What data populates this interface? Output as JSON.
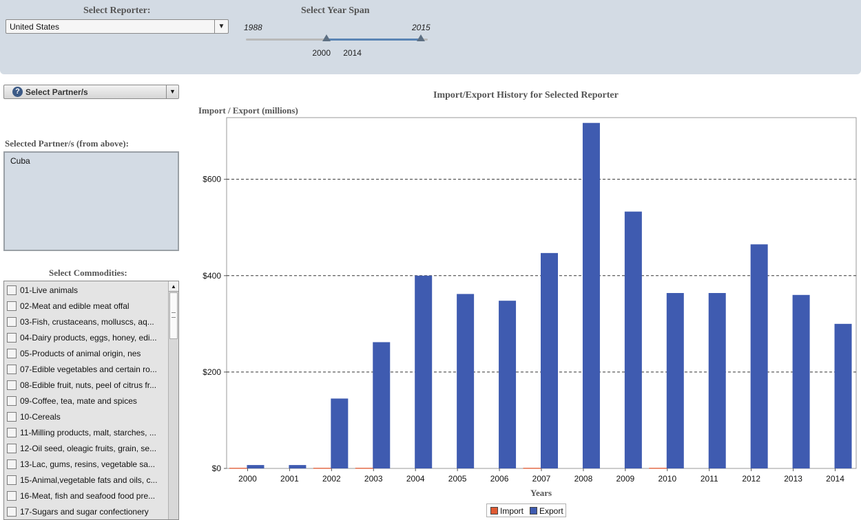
{
  "filters": {
    "reporter_label": "Select Reporter:",
    "reporter_value": "United States",
    "year_label": "Select Year Span",
    "year_min": "1988",
    "year_max": "2015",
    "year_start": "2000",
    "year_end": "2014",
    "dropdown_arrow": "▼"
  },
  "partner": {
    "select_label": "Select Partner/s",
    "selected_label": "Selected Partner/s (from above):",
    "selected": [
      "Cuba"
    ]
  },
  "commodities": {
    "label": "Select Commodities:",
    "items": [
      "01-Live animals",
      "02-Meat and edible meat offal",
      "03-Fish, crustaceans, molluscs, aq...",
      "04-Dairy products, eggs, honey, edi...",
      "05-Products of animal origin, nes",
      "07-Edible vegetables and certain ro...",
      "08-Edible fruit, nuts, peel of citrus fr...",
      "09-Coffee, tea, mate and spices",
      "10-Cereals",
      "11-Milling products, malt, starches, ...",
      "12-Oil seed, oleagic fruits, grain, se...",
      "13-Lac, gums, resins, vegetable sa...",
      "15-Animal,vegetable fats and oils, c...",
      "16-Meat, fish and seafood food pre...",
      "17-Sugars and sugar confectionery"
    ]
  },
  "chart_data": {
    "type": "bar",
    "title": "Import/Export History for Selected Reporter",
    "ylabel": "Import / Export (millions)",
    "xlabel": "Years",
    "categories": [
      "2000",
      "2001",
      "2002",
      "2003",
      "2004",
      "2005",
      "2006",
      "2007",
      "2008",
      "2009",
      "2010",
      "2011",
      "2012",
      "2013",
      "2014"
    ],
    "series": [
      {
        "name": "Import",
        "color": "#e05a33",
        "values": [
          0.5,
          0,
          0.5,
          0.5,
          0,
          0,
          0,
          0.5,
          0,
          0,
          0.5,
          0,
          0,
          0,
          0
        ]
      },
      {
        "name": "Export",
        "color": "#3f5bb0",
        "values": [
          7,
          7,
          145,
          262,
          400,
          362,
          348,
          447,
          717,
          533,
          364,
          364,
          465,
          360,
          300
        ]
      }
    ],
    "ylim": [
      0,
      728
    ],
    "yticks": [
      0,
      200,
      400,
      600
    ],
    "ytick_labels": [
      "$0",
      "$200",
      "$400",
      "$600"
    ],
    "grid": true,
    "legend_position": "bottom"
  }
}
